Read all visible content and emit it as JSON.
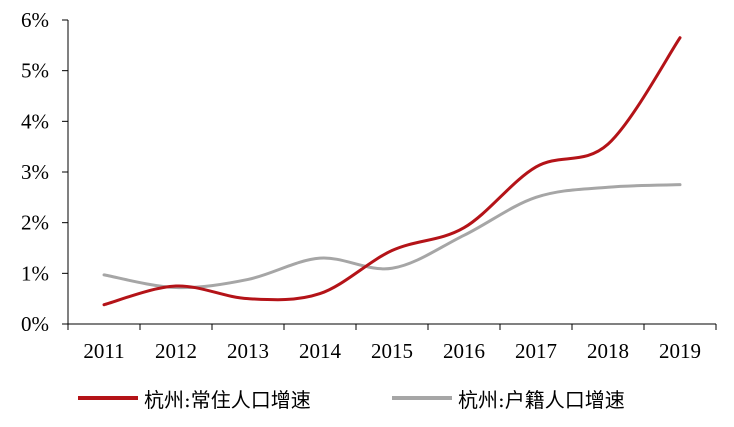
{
  "chart_data": {
    "type": "line",
    "title": "",
    "xlabel": "",
    "ylabel": "",
    "categories": [
      "2011",
      "2012",
      "2013",
      "2014",
      "2015",
      "2016",
      "2017",
      "2018",
      "2019"
    ],
    "ylim": [
      0,
      6
    ],
    "yticks": [
      "0%",
      "1%",
      "2%",
      "3%",
      "4%",
      "5%",
      "6%"
    ],
    "grid": false,
    "legend_position": "bottom",
    "series": [
      {
        "name": "杭州:常住人口增速",
        "color": "#b41318",
        "values": [
          0.38,
          0.75,
          0.5,
          0.6,
          1.45,
          1.9,
          3.1,
          3.55,
          5.65
        ]
      },
      {
        "name": "杭州:户籍人口增速",
        "color": "#a6a6a6",
        "values": [
          0.97,
          0.72,
          0.88,
          1.3,
          1.1,
          1.75,
          2.5,
          2.7,
          2.75
        ]
      }
    ]
  }
}
